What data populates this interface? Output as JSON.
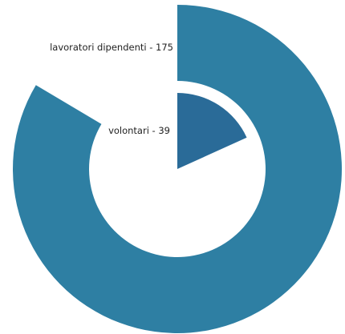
{
  "chart_data": {
    "type": "pie",
    "title": "",
    "series": [
      {
        "label": "lavoratori dipendenti - 175",
        "category": "lavoratori dipendenti",
        "value": 175,
        "color": "#2e7fa3"
      },
      {
        "label": "volontari - 39",
        "category": "volontari",
        "value": 39,
        "color": "#2a6b98"
      }
    ],
    "legend": "none"
  }
}
